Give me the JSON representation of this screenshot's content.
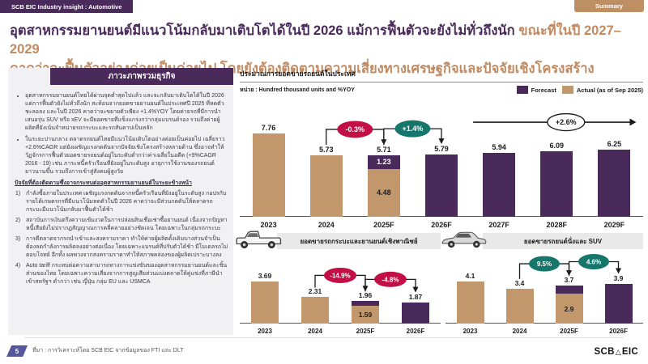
{
  "page": {
    "badge": "SCB EIC Industry insight : Automotive",
    "summary_button": "Summary"
  },
  "title": {
    "line1_purple": "อุตสาหกรรมยานยนต์มีแนวโน้มกลับมาเติบโตได้ในปี 2026 แม้การฟื้นตัวจะยังไม่ทั่วถึงนัก",
    "line1_tan": " ขณะที่ในปี 2027–2029",
    "line2_tan": "คาดว่าจะฟื้นตัวอย่างค่อยเป็นค่อยไป โดยยังต้องติดตามความเสี่ยงทางเศรษฐกิจและปัจจัยเชิงโครงสร้าง"
  },
  "overview": {
    "heading": "ภาวะภาพรวมธุรกิจ",
    "bullets": [
      "อุตสาหกรรมยานยนต์ไทยได้ผ่านจุดต่ำสุดไปแล้ว และจะกลับมาเติบโตได้ในปี 2026 แต่การฟื้นตัวยังไม่ทั่วถึงนัก สะท้อนจากยอดขายยานยนต์ในประเทศปี 2025 ที่หดตัวชะลอลง และในปี 2026 คาดว่าจะขยายตัวเพียง +1.4%YOY โดยค่ายรถที่มีการนำเสนอรุ่น SUV หรือ xEV จะมียอดขายที่แข็งแกร่งกว่ากลุ่มแบรนด์รอง รวมถึงค่ายผู้ผลิตที่ยังเน้นจำหน่ายรถกระบะและรถสันดาปเป็นหลัก",
      "ในระยะปานกลาง ตลาดรถยนต์ไทยมีแนวโน้มเติบโตอย่างค่อยเป็นค่อยไป เฉลี่ยราว +2.6%CAGR แต่ยังเผชิญแรงกดดันจากปัจจัยเชิงโครงสร้างหลายด้าน ซึ่งอาจทำให้วัฏจักรการฟื้นตัวยอดขายรถยนต์อยู่ในระดับต่ำกว่าค่าเฉลี่ยในอดีต (+9%CAGR 2016 - 19) เช่น ภาระหนี้ครัวเรือนที่ยังอยู่ในระดับสูง อายุการใช้งานของรถยนต์ยาวนานขึ้น รวมถึงการเข้าสู่สังคมผู้สูงวัย"
    ],
    "watch_heading": "ปัจจัยที่ต้องติดตามซึ่งอาจกระทบต่ออุตสาหกรรมยานยนต์ในระยะข้างหน้า",
    "watch_items": [
      "กำลังซื้อภายในประเทศ เผชิญแรงกดดันจากหนี้ครัวเรือนที่ยังอยู่ในระดับสูง กอปรกับรายได้เกษตรกรที่มีแนวโน้มหดตัวในปี 2026 คาดว่าจะมีส่วนกดดันให้ตลาดรถกระบะมีแนวโน้มกลับมาฟื้นตัวได้ช้า",
      "สถาบันการเงินตรึงความเข้มงวดในการปล่อยสินเชื่อเช่าซื้อยานยนต์ เนื่องจากปัญหาหนี้เสียยังไม่ปรากฏสัญญาณการคลี่คลายอย่างชัดเจน โดยเฉพาะในกลุ่มรถกระบะ",
      "การตีตลาดจากรถนำเข้าและสงครามราคา ทำให้ค่ายผู้ผลิตดั้งเดิมบางส่วนจำเป็นต้องลดกำลังการผลิตลงอย่างต่อเนื่อง โดยเฉพาะแบรนด์ที่ปรับตัวได้ช้า มีโมเดลรถไม่ตอบโจทย์ อีกทั้ง ผลพวงจากสงครามราคาทำให้สภาพคล่องของผู้ผลิตเปราะบางลง",
      "Auto tariff กระทบต่อความสามารถทางการแข่งขันของอุตสาหกรรมยานยนต์และชิ้นส่วนของไทย โดยเฉพาะความเสี่ยงจากการสูญเสียส่วนแบ่งตลาดให้คู่แข่งที่ภาษีนำเข้าสหรัฐฯ ต่ำกว่า เช่น ญี่ปุ่น กลุ่ม EU และ USMCA"
    ]
  },
  "colors": {
    "purple": "#4A2A5A",
    "tan": "#C3976C",
    "red": "#C20F45",
    "teal": "#16766C",
    "white": "#FFFFFF",
    "title_tan": "#C18A60"
  },
  "chart_data": [
    {
      "id": "domestic_sales",
      "type": "bar",
      "title": "ประมาณการยอดขายรถยนต์ในประเทศ",
      "unit": "หน่วย : Hundred thousand units and %YOY",
      "legend": [
        {
          "label": "Forecast",
          "colorKey": "purple"
        },
        {
          "label": "Actual (as of Sep 2025)",
          "colorKey": "tan"
        }
      ],
      "categories": [
        "2023",
        "2024",
        "2025F",
        "2026F",
        "2027F",
        "2028F",
        "2029F"
      ],
      "bars": [
        {
          "total_label": "7.76",
          "segments": [
            {
              "value": 7.76,
              "colorKey": "tan"
            }
          ]
        },
        {
          "total_label": "5.73",
          "segments": [
            {
              "value": 5.73,
              "colorKey": "tan"
            }
          ]
        },
        {
          "total_label": "5.71",
          "segments": [
            {
              "value": 4.48,
              "colorKey": "tan",
              "label": "4.48"
            },
            {
              "value": 1.23,
              "colorKey": "purple",
              "label": "1.23"
            }
          ]
        },
        {
          "total_label": "5.79",
          "segments": [
            {
              "value": 5.79,
              "colorKey": "purple"
            }
          ]
        },
        {
          "total_label": "5.94",
          "segments": [
            {
              "value": 5.94,
              "colorKey": "purple"
            }
          ]
        },
        {
          "total_label": "6.09",
          "segments": [
            {
              "value": 6.09,
              "colorKey": "purple"
            }
          ]
        },
        {
          "total_label": "6.25",
          "segments": [
            {
              "value": 6.25,
              "colorKey": "purple"
            }
          ]
        }
      ],
      "badges": [
        {
          "label": "-0.3%",
          "colorKey": "red",
          "kind": "bracket",
          "from": 1,
          "to": 2
        },
        {
          "label": "+1.4%",
          "colorKey": "teal",
          "kind": "bracket",
          "from": 2,
          "to": 3
        },
        {
          "label": "+2.6%",
          "colorKey": "white",
          "kind": "arrow",
          "from": 4,
          "to": 6
        }
      ]
    },
    {
      "id": "pickup_commercial_sales",
      "type": "bar",
      "title": "ยอดขายรถกระบะและยานยนต์เชิงพาณิชย์",
      "icon": "pickup-truck",
      "categories": [
        "2023",
        "2024",
        "2025F",
        "2026F"
      ],
      "bars": [
        {
          "total_label": "3.69",
          "segments": [
            {
              "value": 3.69,
              "colorKey": "tan"
            }
          ]
        },
        {
          "total_label": "2.31",
          "segments": [
            {
              "value": 2.31,
              "colorKey": "tan"
            }
          ]
        },
        {
          "total_label": "1.96",
          "segments": [
            {
              "value": 1.59,
              "colorKey": "tan",
              "label": "1.59"
            },
            {
              "value": 0.37,
              "colorKey": "purple"
            }
          ]
        },
        {
          "total_label": "1.87",
          "segments": [
            {
              "value": 1.87,
              "colorKey": "purple"
            }
          ]
        }
      ],
      "badges": [
        {
          "label": "-14.9%",
          "colorKey": "red",
          "kind": "bracket",
          "from": 1,
          "to": 2
        },
        {
          "label": "-4.8%",
          "colorKey": "red",
          "kind": "bracket",
          "from": 2,
          "to": 3
        }
      ]
    },
    {
      "id": "passenger_suv_sales",
      "type": "bar",
      "title": "ยอดขายรถยนต์นั่งและ SUV",
      "icon": "sedan-car",
      "categories": [
        "2023",
        "2024",
        "2025F",
        "2026F"
      ],
      "bars": [
        {
          "total_label": "4.1",
          "segments": [
            {
              "value": 4.1,
              "colorKey": "tan"
            }
          ]
        },
        {
          "total_label": "3.4",
          "segments": [
            {
              "value": 3.4,
              "colorKey": "tan"
            }
          ]
        },
        {
          "total_label": "3.7",
          "segments": [
            {
              "value": 2.9,
              "colorKey": "tan",
              "label": "2.9"
            },
            {
              "value": 0.8,
              "colorKey": "purple"
            }
          ]
        },
        {
          "total_label": "3.9",
          "segments": [
            {
              "value": 3.9,
              "colorKey": "purple"
            }
          ]
        }
      ],
      "badges": [
        {
          "label": "9.5%",
          "colorKey": "teal",
          "kind": "bracket",
          "from": 1,
          "to": 2
        },
        {
          "label": "4.6%",
          "colorKey": "teal",
          "kind": "bracket",
          "from": 2,
          "to": 3
        }
      ]
    }
  ],
  "footer": {
    "page_number": "5",
    "source": "ที่มา : การวิเคราะห์โดย SCB EIC จากข้อมูลของ FTI และ DLT",
    "logo_left": "SCB",
    "logo_glyph": "△",
    "logo_right": "EIC"
  }
}
